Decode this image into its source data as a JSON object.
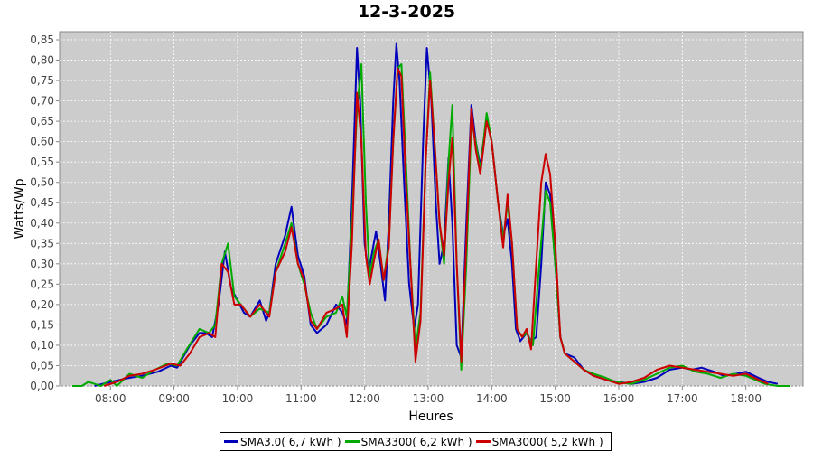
{
  "chart_data": {
    "type": "line",
    "title": "12-3-2025",
    "xlabel": "Heures",
    "ylabel": "Watts/Wp",
    "xlim": [
      7.2,
      18.9
    ],
    "ylim": [
      0,
      0.87
    ],
    "x_ticks": [
      8,
      9,
      10,
      11,
      12,
      13,
      14,
      15,
      16,
      17,
      18
    ],
    "x_tick_labels": [
      "08:00",
      "09:00",
      "10:00",
      "11:00",
      "12:00",
      "13:00",
      "14:00",
      "15:00",
      "16:00",
      "17:00",
      "18:00"
    ],
    "y_ticks": [
      0,
      0.05,
      0.1,
      0.15,
      0.2,
      0.25,
      0.3,
      0.35,
      0.4,
      0.45,
      0.5,
      0.55,
      0.6,
      0.65,
      0.7,
      0.75,
      0.8,
      0.85
    ],
    "y_tick_labels": [
      "0,00",
      "0,05",
      "0,10",
      "0,15",
      "0,20",
      "0,25",
      "0,30",
      "0,35",
      "0,40",
      "0,45",
      "0,50",
      "0,55",
      "0,60",
      "0,65",
      "0,70",
      "0,75",
      "0,80",
      "0,85"
    ],
    "grid": true,
    "legend_position": "bottom",
    "series": [
      {
        "name": "SMA3.0( 6,7 kWh )",
        "color": "#0000bb",
        "points": [
          [
            7.75,
            0
          ],
          [
            8.0,
            0.01
          ],
          [
            8.3,
            0.02
          ],
          [
            8.5,
            0.025
          ],
          [
            8.75,
            0.035
          ],
          [
            8.95,
            0.05
          ],
          [
            9.05,
            0.045
          ],
          [
            9.25,
            0.1
          ],
          [
            9.4,
            0.13
          ],
          [
            9.5,
            0.13
          ],
          [
            9.6,
            0.12
          ],
          [
            9.7,
            0.2
          ],
          [
            9.8,
            0.33
          ],
          [
            9.9,
            0.24
          ],
          [
            10.0,
            0.21
          ],
          [
            10.1,
            0.18
          ],
          [
            10.2,
            0.17
          ],
          [
            10.35,
            0.21
          ],
          [
            10.45,
            0.16
          ],
          [
            10.5,
            0.18
          ],
          [
            10.6,
            0.3
          ],
          [
            10.75,
            0.37
          ],
          [
            10.85,
            0.44
          ],
          [
            10.95,
            0.32
          ],
          [
            11.05,
            0.27
          ],
          [
            11.15,
            0.15
          ],
          [
            11.25,
            0.13
          ],
          [
            11.4,
            0.15
          ],
          [
            11.55,
            0.2
          ],
          [
            11.65,
            0.18
          ],
          [
            11.72,
            0.15
          ],
          [
            11.8,
            0.45
          ],
          [
            11.88,
            0.83
          ],
          [
            11.93,
            0.7
          ],
          [
            12.0,
            0.35
          ],
          [
            12.06,
            0.28
          ],
          [
            12.12,
            0.33
          ],
          [
            12.18,
            0.38
          ],
          [
            12.25,
            0.3
          ],
          [
            12.32,
            0.21
          ],
          [
            12.38,
            0.4
          ],
          [
            12.45,
            0.7
          ],
          [
            12.5,
            0.84
          ],
          [
            12.55,
            0.75
          ],
          [
            12.62,
            0.5
          ],
          [
            12.7,
            0.25
          ],
          [
            12.78,
            0.14
          ],
          [
            12.84,
            0.2
          ],
          [
            12.92,
            0.6
          ],
          [
            12.98,
            0.83
          ],
          [
            13.05,
            0.7
          ],
          [
            13.12,
            0.45
          ],
          [
            13.18,
            0.3
          ],
          [
            13.25,
            0.35
          ],
          [
            13.32,
            0.56
          ],
          [
            13.38,
            0.4
          ],
          [
            13.45,
            0.1
          ],
          [
            13.52,
            0.07
          ],
          [
            13.6,
            0.4
          ],
          [
            13.68,
            0.69
          ],
          [
            13.75,
            0.6
          ],
          [
            13.82,
            0.54
          ],
          [
            13.92,
            0.66
          ],
          [
            14.0,
            0.6
          ],
          [
            14.1,
            0.45
          ],
          [
            14.18,
            0.37
          ],
          [
            14.25,
            0.41
          ],
          [
            14.32,
            0.3
          ],
          [
            14.38,
            0.14
          ],
          [
            14.45,
            0.11
          ],
          [
            14.55,
            0.13
          ],
          [
            14.62,
            0.11
          ],
          [
            14.7,
            0.12
          ],
          [
            14.78,
            0.3
          ],
          [
            14.85,
            0.5
          ],
          [
            14.92,
            0.47
          ],
          [
            15.0,
            0.3
          ],
          [
            15.08,
            0.12
          ],
          [
            15.15,
            0.08
          ],
          [
            15.3,
            0.07
          ],
          [
            15.45,
            0.04
          ],
          [
            15.6,
            0.025
          ],
          [
            15.8,
            0.015
          ],
          [
            16.0,
            0.01
          ],
          [
            16.2,
            0.005
          ],
          [
            16.4,
            0.01
          ],
          [
            16.6,
            0.02
          ],
          [
            16.8,
            0.04
          ],
          [
            17.0,
            0.045
          ],
          [
            17.15,
            0.04
          ],
          [
            17.3,
            0.045
          ],
          [
            17.5,
            0.035
          ],
          [
            17.65,
            0.025
          ],
          [
            17.85,
            0.03
          ],
          [
            18.0,
            0.035
          ],
          [
            18.2,
            0.02
          ],
          [
            18.35,
            0.01
          ],
          [
            18.5,
            0.005
          ]
        ]
      },
      {
        "name": "SMA3300( 6,2 kWh )",
        "color": "#00aa00",
        "points": [
          [
            7.4,
            0
          ],
          [
            7.55,
            0
          ],
          [
            7.65,
            0.01
          ],
          [
            7.75,
            0.005
          ],
          [
            7.85,
            0
          ],
          [
            8.0,
            0.015
          ],
          [
            8.1,
            0
          ],
          [
            8.3,
            0.03
          ],
          [
            8.5,
            0.02
          ],
          [
            8.7,
            0.04
          ],
          [
            8.9,
            0.055
          ],
          [
            9.05,
            0.05
          ],
          [
            9.2,
            0.09
          ],
          [
            9.4,
            0.14
          ],
          [
            9.55,
            0.13
          ],
          [
            9.65,
            0.15
          ],
          [
            9.75,
            0.3
          ],
          [
            9.85,
            0.35
          ],
          [
            9.95,
            0.22
          ],
          [
            10.05,
            0.2
          ],
          [
            10.2,
            0.17
          ],
          [
            10.35,
            0.19
          ],
          [
            10.5,
            0.18
          ],
          [
            10.6,
            0.28
          ],
          [
            10.75,
            0.35
          ],
          [
            10.85,
            0.4
          ],
          [
            10.95,
            0.3
          ],
          [
            11.05,
            0.25
          ],
          [
            11.15,
            0.18
          ],
          [
            11.25,
            0.14
          ],
          [
            11.4,
            0.17
          ],
          [
            11.55,
            0.18
          ],
          [
            11.65,
            0.22
          ],
          [
            11.72,
            0.17
          ],
          [
            11.8,
            0.4
          ],
          [
            11.88,
            0.68
          ],
          [
            11.95,
            0.79
          ],
          [
            12.02,
            0.45
          ],
          [
            12.08,
            0.27
          ],
          [
            12.15,
            0.33
          ],
          [
            12.22,
            0.36
          ],
          [
            12.3,
            0.26
          ],
          [
            12.38,
            0.35
          ],
          [
            12.45,
            0.6
          ],
          [
            12.52,
            0.78
          ],
          [
            12.58,
            0.79
          ],
          [
            12.65,
            0.55
          ],
          [
            12.72,
            0.3
          ],
          [
            12.8,
            0.09
          ],
          [
            12.88,
            0.18
          ],
          [
            12.96,
            0.55
          ],
          [
            13.03,
            0.77
          ],
          [
            13.1,
            0.6
          ],
          [
            13.18,
            0.4
          ],
          [
            13.25,
            0.3
          ],
          [
            13.32,
            0.55
          ],
          [
            13.38,
            0.69
          ],
          [
            13.45,
            0.3
          ],
          [
            13.52,
            0.04
          ],
          [
            13.6,
            0.3
          ],
          [
            13.68,
            0.65
          ],
          [
            13.75,
            0.6
          ],
          [
            13.82,
            0.53
          ],
          [
            13.92,
            0.67
          ],
          [
            14.0,
            0.6
          ],
          [
            14.1,
            0.45
          ],
          [
            14.18,
            0.36
          ],
          [
            14.25,
            0.45
          ],
          [
            14.32,
            0.35
          ],
          [
            14.4,
            0.14
          ],
          [
            14.48,
            0.12
          ],
          [
            14.55,
            0.13
          ],
          [
            14.65,
            0.1
          ],
          [
            14.75,
            0.3
          ],
          [
            14.85,
            0.48
          ],
          [
            14.92,
            0.45
          ],
          [
            15.0,
            0.3
          ],
          [
            15.08,
            0.12
          ],
          [
            15.15,
            0.08
          ],
          [
            15.3,
            0.06
          ],
          [
            15.45,
            0.04
          ],
          [
            15.6,
            0.03
          ],
          [
            15.8,
            0.02
          ],
          [
            15.95,
            0.01
          ],
          [
            16.2,
            0.005
          ],
          [
            16.4,
            0.015
          ],
          [
            16.6,
            0.03
          ],
          [
            16.8,
            0.045
          ],
          [
            17.0,
            0.05
          ],
          [
            17.2,
            0.035
          ],
          [
            17.4,
            0.03
          ],
          [
            17.6,
            0.02
          ],
          [
            17.8,
            0.03
          ],
          [
            18.0,
            0.025
          ],
          [
            18.15,
            0.015
          ],
          [
            18.3,
            0.005
          ],
          [
            18.5,
            0
          ],
          [
            18.7,
            0
          ]
        ]
      },
      {
        "name": "SMA3000( 5,2 kWh )",
        "color": "#cc0000",
        "points": [
          [
            7.9,
            0
          ],
          [
            8.1,
            0.01
          ],
          [
            8.3,
            0.025
          ],
          [
            8.5,
            0.03
          ],
          [
            8.7,
            0.04
          ],
          [
            8.95,
            0.055
          ],
          [
            9.1,
            0.05
          ],
          [
            9.25,
            0.08
          ],
          [
            9.4,
            0.12
          ],
          [
            9.55,
            0.13
          ],
          [
            9.65,
            0.12
          ],
          [
            9.75,
            0.3
          ],
          [
            9.85,
            0.28
          ],
          [
            9.95,
            0.2
          ],
          [
            10.05,
            0.2
          ],
          [
            10.2,
            0.17
          ],
          [
            10.35,
            0.2
          ],
          [
            10.5,
            0.17
          ],
          [
            10.6,
            0.28
          ],
          [
            10.75,
            0.33
          ],
          [
            10.85,
            0.39
          ],
          [
            10.95,
            0.3
          ],
          [
            11.05,
            0.26
          ],
          [
            11.15,
            0.16
          ],
          [
            11.25,
            0.14
          ],
          [
            11.4,
            0.18
          ],
          [
            11.55,
            0.19
          ],
          [
            11.65,
            0.2
          ],
          [
            11.72,
            0.12
          ],
          [
            11.8,
            0.35
          ],
          [
            11.88,
            0.72
          ],
          [
            11.95,
            0.6
          ],
          [
            12.02,
            0.32
          ],
          [
            12.08,
            0.25
          ],
          [
            12.15,
            0.31
          ],
          [
            12.22,
            0.36
          ],
          [
            12.3,
            0.26
          ],
          [
            12.38,
            0.34
          ],
          [
            12.45,
            0.6
          ],
          [
            12.52,
            0.78
          ],
          [
            12.58,
            0.76
          ],
          [
            12.65,
            0.5
          ],
          [
            12.72,
            0.3
          ],
          [
            12.8,
            0.06
          ],
          [
            12.88,
            0.16
          ],
          [
            12.96,
            0.55
          ],
          [
            13.03,
            0.75
          ],
          [
            13.1,
            0.6
          ],
          [
            13.18,
            0.4
          ],
          [
            13.25,
            0.32
          ],
          [
            13.32,
            0.5
          ],
          [
            13.38,
            0.61
          ],
          [
            13.45,
            0.3
          ],
          [
            13.52,
            0.06
          ],
          [
            13.6,
            0.35
          ],
          [
            13.68,
            0.68
          ],
          [
            13.75,
            0.58
          ],
          [
            13.82,
            0.52
          ],
          [
            13.92,
            0.65
          ],
          [
            14.0,
            0.6
          ],
          [
            14.1,
            0.45
          ],
          [
            14.18,
            0.34
          ],
          [
            14.25,
            0.47
          ],
          [
            14.32,
            0.35
          ],
          [
            14.4,
            0.14
          ],
          [
            14.48,
            0.12
          ],
          [
            14.55,
            0.14
          ],
          [
            14.62,
            0.09
          ],
          [
            14.7,
            0.3
          ],
          [
            14.78,
            0.5
          ],
          [
            14.85,
            0.57
          ],
          [
            14.92,
            0.52
          ],
          [
            15.0,
            0.35
          ],
          [
            15.08,
            0.12
          ],
          [
            15.15,
            0.08
          ],
          [
            15.3,
            0.06
          ],
          [
            15.45,
            0.04
          ],
          [
            15.6,
            0.025
          ],
          [
            15.8,
            0.015
          ],
          [
            16.0,
            0.005
          ],
          [
            16.2,
            0.01
          ],
          [
            16.4,
            0.02
          ],
          [
            16.6,
            0.04
          ],
          [
            16.8,
            0.05
          ],
          [
            17.0,
            0.045
          ],
          [
            17.2,
            0.04
          ],
          [
            17.4,
            0.035
          ],
          [
            17.6,
            0.03
          ],
          [
            17.8,
            0.025
          ],
          [
            18.0,
            0.03
          ],
          [
            18.2,
            0.015
          ],
          [
            18.35,
            0.005
          ]
        ]
      }
    ]
  }
}
